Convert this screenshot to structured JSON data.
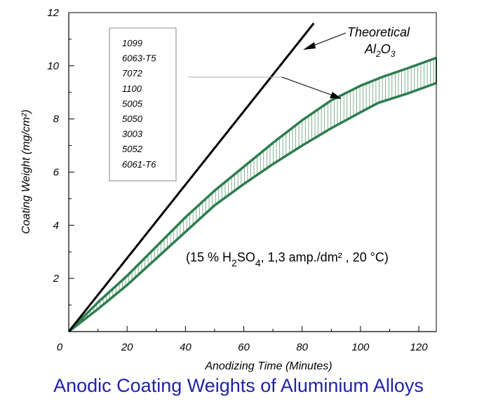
{
  "caption": "Anodic Coating Weights of Aluminium Alloys",
  "chart_data": {
    "type": "line",
    "xlabel": "Anodizing Time (Minutes)",
    "ylabel": "Coating Weight (mg/cm²)",
    "xlim": [
      0,
      126
    ],
    "ylim": [
      0,
      12
    ],
    "x_ticks": [
      "0",
      "20",
      "40",
      "60",
      "80",
      "100",
      "120"
    ],
    "y_ticks": [
      "2",
      "4",
      "6",
      "8",
      "10",
      "12"
    ],
    "grid": false,
    "legend_items": [
      "1099",
      "6063-T5",
      "7072",
      "1100",
      "5005",
      "5050",
      "3003",
      "5052",
      "6061-T6"
    ],
    "theoretical_label": {
      "line1": "Theoretical",
      "formula": "Al",
      "sub1": "2",
      "mid": "O",
      "sub2": "3"
    },
    "condition_label": {
      "a": "(15 % H",
      "s1": "2",
      "b": "SO",
      "s2": "4",
      "c": ", 1,3 amp./dm² , 20 °C)"
    },
    "series": [
      {
        "role": "theoretical",
        "x": [
          0,
          84
        ],
        "y": [
          0,
          11.6
        ]
      },
      {
        "role": "upper",
        "x": [
          0,
          10,
          20,
          30,
          40,
          50,
          60,
          70,
          80,
          90,
          100,
          108,
          116,
          126
        ],
        "y": [
          0,
          1.1,
          2.1,
          3.2,
          4.3,
          5.3,
          6.2,
          7.1,
          7.95,
          8.7,
          9.25,
          9.6,
          9.9,
          10.3
        ]
      },
      {
        "role": "lower",
        "x": [
          0,
          10,
          20,
          30,
          40,
          50,
          60,
          70,
          80,
          90,
          100,
          106,
          116,
          126
        ],
        "y": [
          0,
          0.85,
          1.75,
          2.75,
          3.75,
          4.75,
          5.55,
          6.3,
          7.0,
          7.65,
          8.25,
          8.6,
          8.95,
          9.35
        ]
      }
    ],
    "colors": {
      "band": "#2e7d4f",
      "theoretical": "#000000",
      "caption": "#2222a8"
    }
  }
}
